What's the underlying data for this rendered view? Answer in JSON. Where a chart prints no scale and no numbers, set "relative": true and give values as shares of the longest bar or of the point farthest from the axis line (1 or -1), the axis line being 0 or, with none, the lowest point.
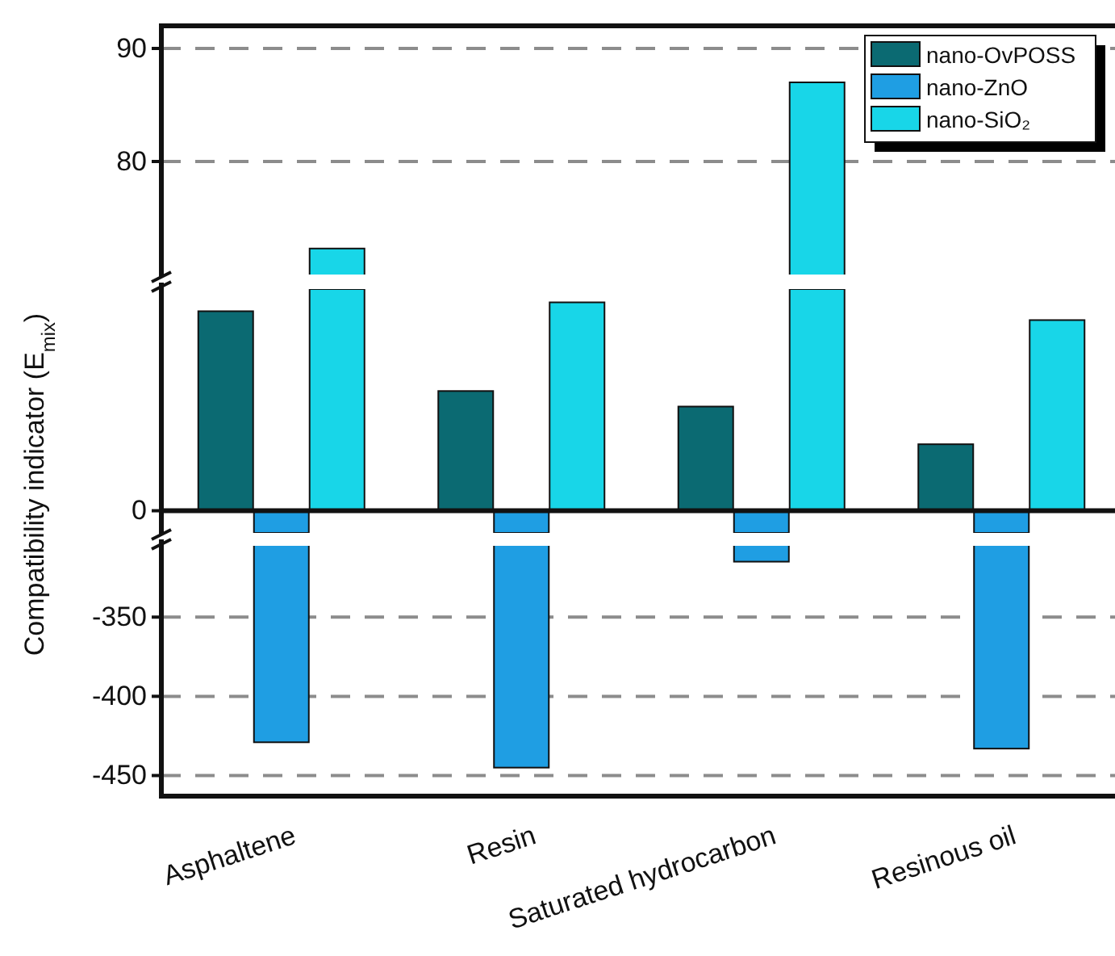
{
  "chart_data": [
    {
      "type": "bar",
      "ylabel": "Compatibility indicator (E$_{mix}$)",
      "ylim": [
        70,
        92
      ],
      "yticks": [
        80,
        90
      ],
      "grid": "y",
      "legend": "top right",
      "tick_labels": "y",
      "series": [
        {
          "name": "nano-OvPOSS",
          "color": "#0b6a72",
          "values": [
            null,
            null,
            null,
            null
          ]
        },
        {
          "name": "nano-ZnO",
          "color": "#1f9ee3",
          "values": [
            null,
            null,
            null,
            null
          ]
        },
        {
          "name": "nano-SiO₂",
          "color": "#18d6e8",
          "values": [
            72.3,
            null,
            87.0,
            null
          ]
        }
      ]
    },
    {
      "type": "bar",
      "relative": true,
      "annotations": [
        "0"
      ],
      "tick_labels": "y",
      "series": [
        {
          "color": "#0b6a72",
          "values": [
            0.9,
            0.54,
            0.47,
            0.3
          ]
        },
        {
          "color": "#1f9ee3",
          "values": [
            -0.1,
            -0.1,
            -0.1,
            -0.1
          ]
        },
        {
          "color": "#18d6e8",
          "values": [
            1,
            0.94,
            1,
            0.86
          ]
        }
      ]
    },
    {
      "type": "bar",
      "categories": [
        "Asphaltene",
        "Resin",
        "Saturated hydrocarbon",
        "Resinous oil"
      ],
      "ylim": [
        -463,
        -305
      ],
      "yticks": [
        -350,
        -400,
        -450
      ],
      "grid": "y",
      "series": [
        {
          "color": "#0b6a72",
          "values": [
            null,
            null,
            null,
            null
          ]
        },
        {
          "color": "#1f9ee3",
          "values": [
            -429,
            -445,
            -315,
            -433
          ]
        },
        {
          "color": "#18d6e8",
          "values": [
            null,
            null,
            null,
            null
          ]
        }
      ]
    }
  ]
}
